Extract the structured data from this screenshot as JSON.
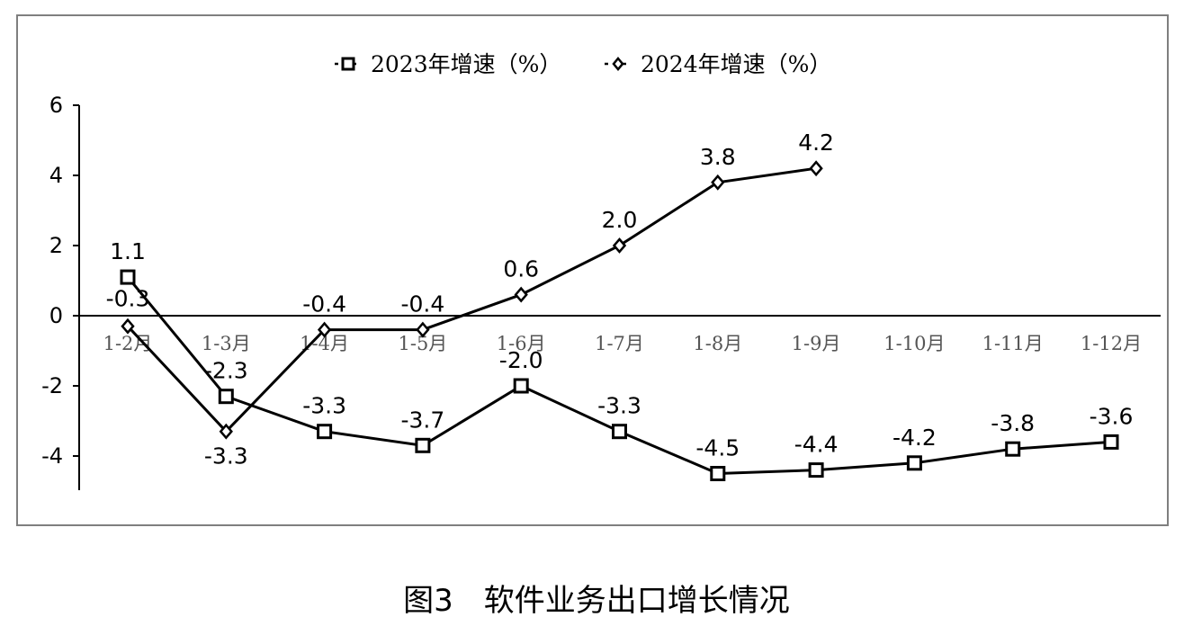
{
  "chart_data": {
    "type": "line",
    "categories": [
      "1-2月",
      "1-3月",
      "1-4月",
      "1-5月",
      "1-6月",
      "1-7月",
      "1-8月",
      "1-9月",
      "1-10月",
      "1-11月",
      "1-12月"
    ],
    "series": [
      {
        "name": "2023年增速（%）",
        "marker": "square",
        "values": [
          1.1,
          -2.3,
          -3.3,
          -3.7,
          -2.0,
          -3.3,
          -4.5,
          -4.4,
          -4.2,
          -3.8,
          -3.6
        ]
      },
      {
        "name": "2024年增速（%）",
        "marker": "diamond",
        "values": [
          -0.3,
          -3.3,
          -0.4,
          -0.4,
          0.6,
          2.0,
          3.8,
          4.2,
          null,
          null,
          null
        ]
      }
    ],
    "ylim": [
      -5,
      6
    ],
    "yticks": [
      6,
      4,
      2,
      0,
      -2,
      -4
    ],
    "legend_position": "top-center",
    "grid": false,
    "line_color": "#000000"
  },
  "caption": "图3　软件业务出口增长情况"
}
